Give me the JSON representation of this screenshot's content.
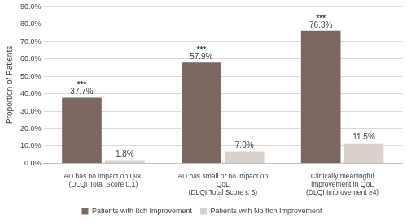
{
  "chart_data": {
    "type": "bar",
    "y_label": "Proportion of Patients",
    "categories": [
      [
        "AD has no impact on QoL",
        "(DLQI Total Score 0,1)"
      ],
      [
        "AD has small or no impact on",
        "QoL",
        "(DLQI Total Score ≤ 5)"
      ],
      [
        "Clinically meaningful",
        "improvement in QoL",
        "(DLQI Improvement ≥4)"
      ]
    ],
    "series": [
      {
        "name": "Patients with Itch Improvement",
        "color": "#7b6660",
        "values": [
          37.7,
          57.9,
          76.3
        ],
        "value_labels": [
          "37.7%",
          "57.9%",
          "76.3%"
        ]
      },
      {
        "name": "Patients with No Itch Improvement",
        "color": "#d8d1cc",
        "values": [
          1.8,
          7.0,
          11.5
        ],
        "value_labels": [
          "1.8%",
          "7.0%",
          "11.5%"
        ]
      }
    ],
    "annotations": [
      {
        "series": "Patients with Itch Improvement",
        "category": 0,
        "text": "***"
      },
      {
        "series": "Patients with Itch Improvement",
        "category": 1,
        "text": "***"
      },
      {
        "series": "Patients with Itch Improvement",
        "category": 2,
        "text": "***"
      }
    ],
    "ylim": [
      0,
      90
    ],
    "yticks": [
      {
        "value": 0,
        "label": "0.0%"
      },
      {
        "value": 10,
        "label": "10.0%"
      },
      {
        "value": 20,
        "label": "20.0%"
      },
      {
        "value": 30,
        "label": "30.0%"
      },
      {
        "value": 40,
        "label": "40.0%"
      },
      {
        "value": 50,
        "label": "50.0%"
      },
      {
        "value": 60,
        "label": "60.0%"
      },
      {
        "value": 70,
        "label": "70.0%"
      },
      {
        "value": 80,
        "label": "80.0%"
      },
      {
        "value": 90,
        "label": "90.0%"
      }
    ],
    "grid": true,
    "legend": "bottom",
    "data_labels": true
  }
}
